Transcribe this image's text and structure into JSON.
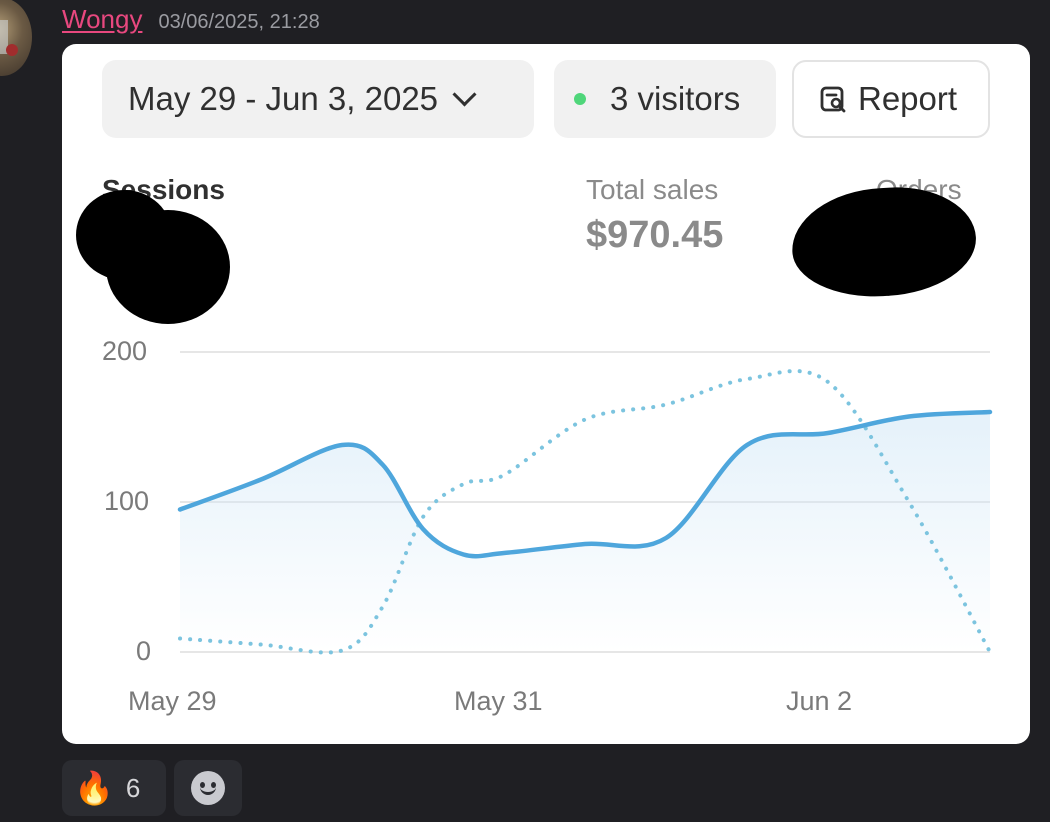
{
  "message": {
    "username": "Wongy",
    "timestamp": "03/06/2025, 21:28",
    "avatar_icon": "avatar-photo"
  },
  "dashboard": {
    "date_range": "May 29 - Jun 3, 2025",
    "visitors": "3 visitors",
    "report_label": "Report",
    "metrics": {
      "sessions_label": "Sessions",
      "total_sales_label": "Total sales",
      "total_sales_value": "$970.45",
      "orders_label": "Orders"
    }
  },
  "chart_data": {
    "type": "line",
    "x_ticks": [
      "May 29",
      "May 31",
      "Jun 2"
    ],
    "y_ticks": [
      "200",
      "100",
      "0"
    ],
    "ylim": [
      0,
      200
    ],
    "grid": true,
    "series": [
      {
        "style": "solid",
        "color": "#4ea6dc",
        "points": [
          [
            0,
            95
          ],
          [
            0.5,
            115
          ],
          [
            1,
            138
          ],
          [
            1.25,
            125
          ],
          [
            1.5,
            82
          ],
          [
            1.75,
            65
          ],
          [
            2,
            66
          ],
          [
            2.5,
            72
          ],
          [
            3,
            76
          ],
          [
            3.5,
            138
          ],
          [
            4,
            146
          ],
          [
            4.5,
            157
          ],
          [
            5,
            160
          ]
        ]
      },
      {
        "style": "dotted",
        "color": "#7cc4df",
        "points": [
          [
            0,
            9
          ],
          [
            0.5,
            5
          ],
          [
            1,
            1
          ],
          [
            1.25,
            30
          ],
          [
            1.5,
            90
          ],
          [
            1.75,
            112
          ],
          [
            2,
            118
          ],
          [
            2.5,
            155
          ],
          [
            3,
            165
          ],
          [
            3.5,
            182
          ],
          [
            4,
            180
          ],
          [
            4.5,
            100
          ],
          [
            5,
            0
          ]
        ]
      }
    ]
  },
  "reactions": [
    {
      "emoji": "🔥",
      "count": "6",
      "icon": "fire-icon"
    }
  ],
  "add_reaction_icon": "smiley-icon"
}
